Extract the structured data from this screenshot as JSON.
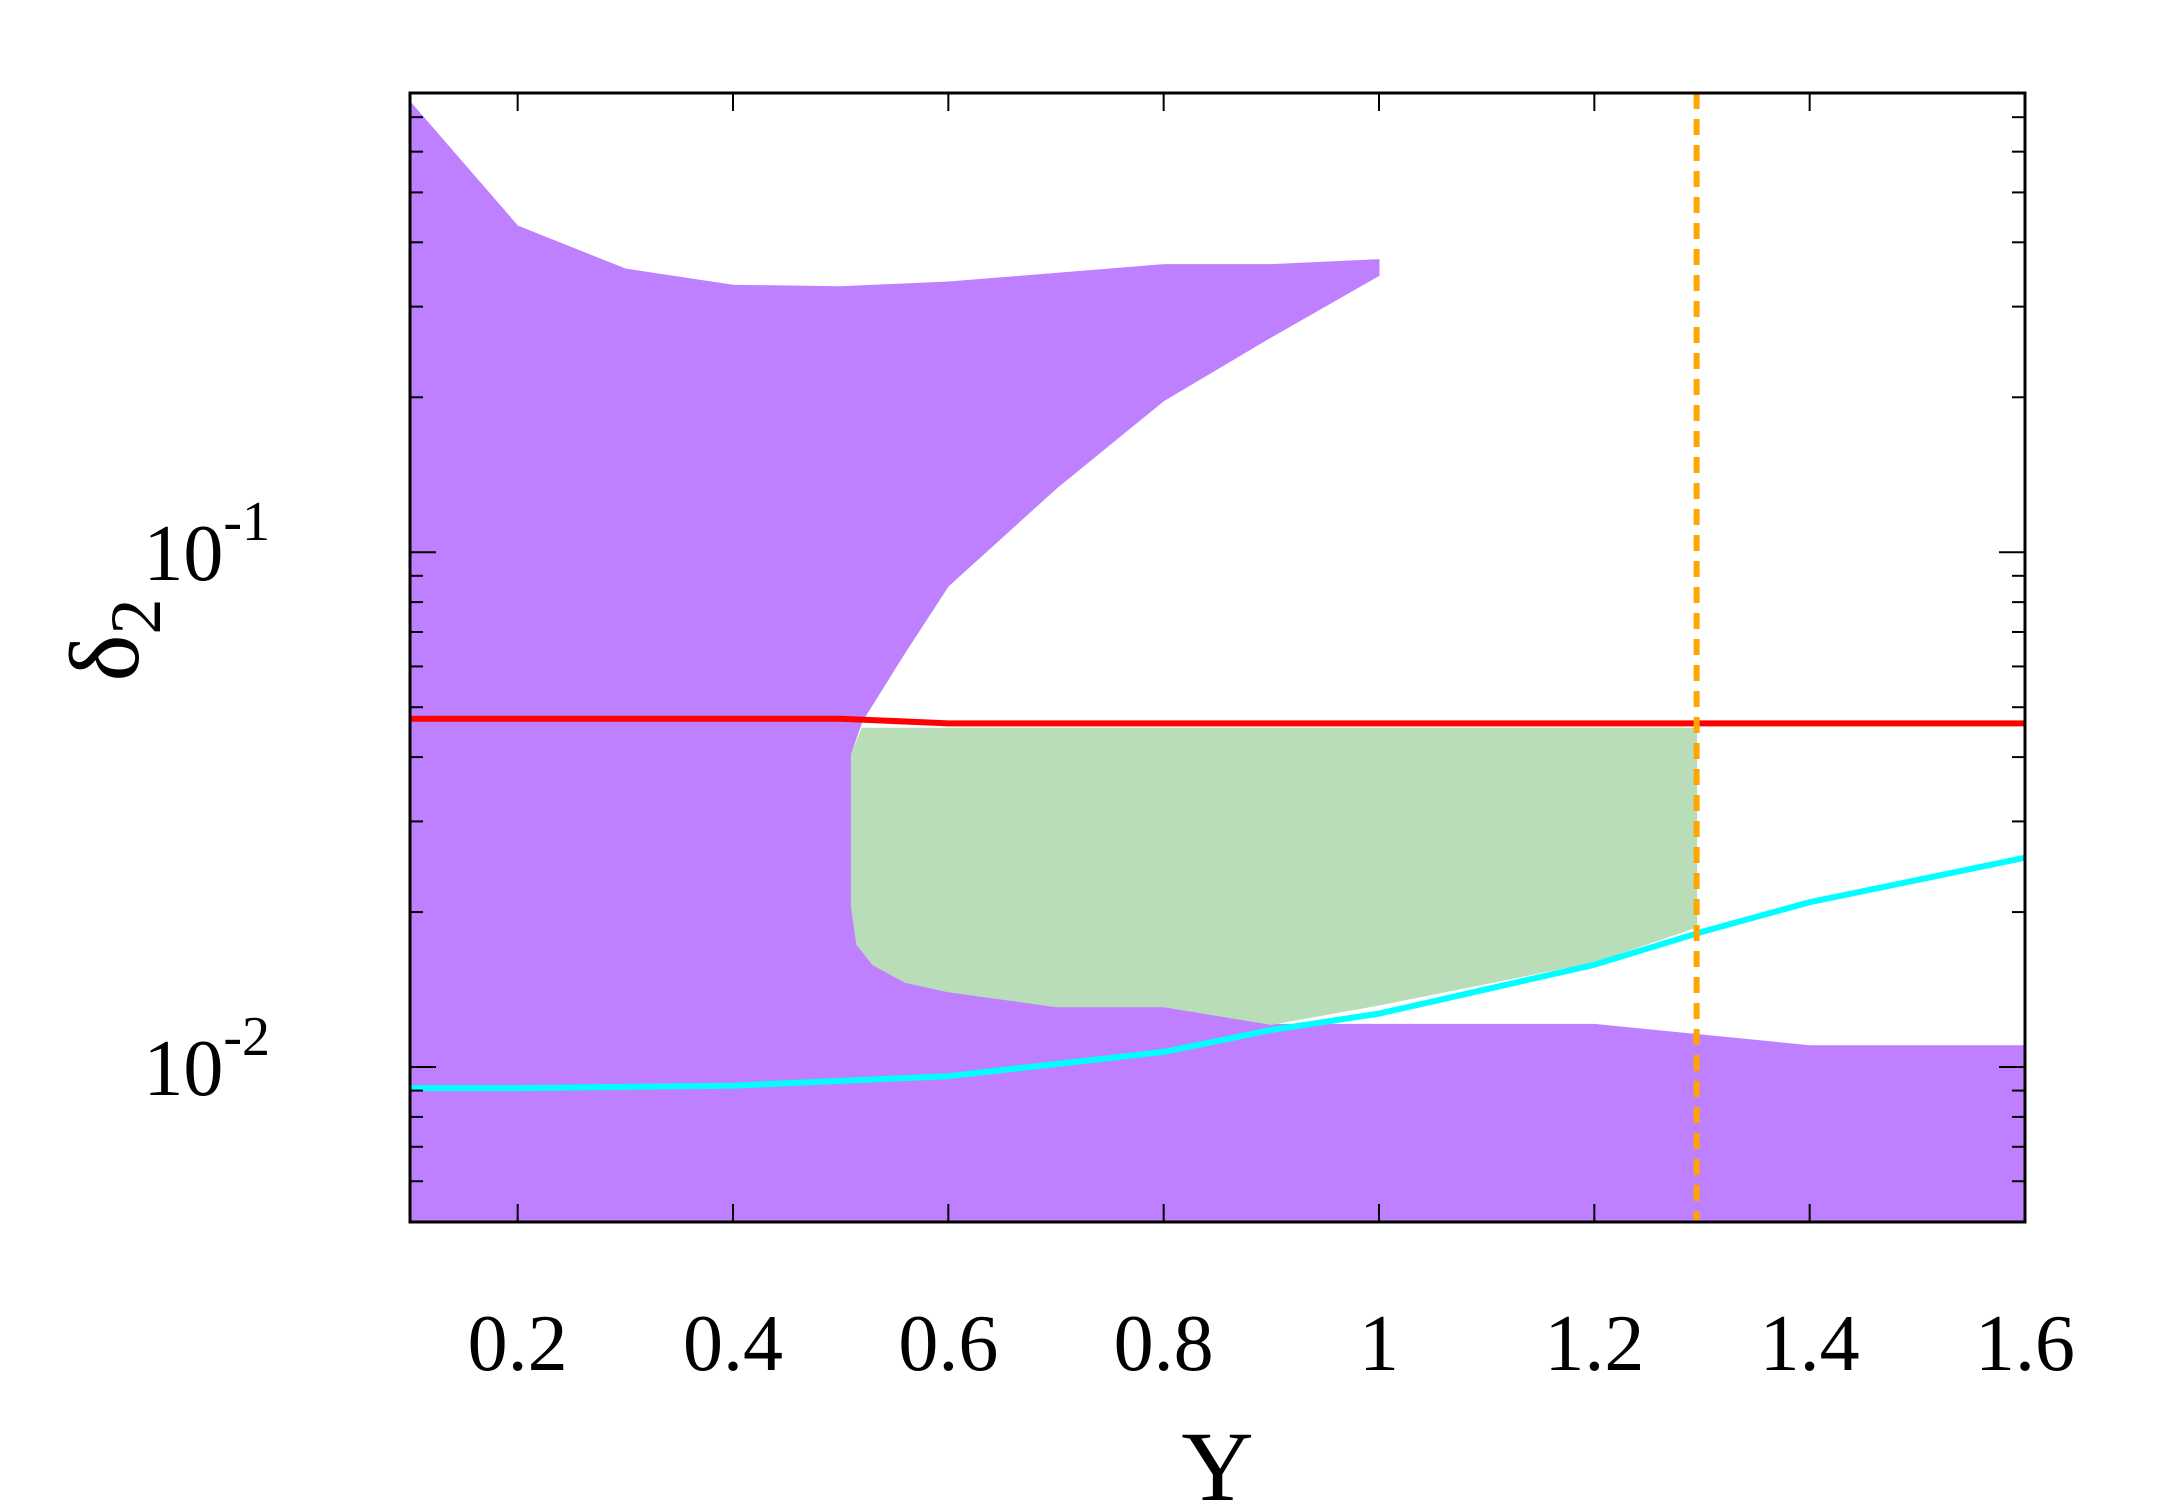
{
  "chart_data": {
    "type": "area",
    "xlabel": "Y",
    "ylabel": "δ",
    "ylabel_subscript": "2",
    "xscale": "linear",
    "yscale": "log",
    "xlim": [
      0.1,
      1.6
    ],
    "ylim": [
      0.005,
      0.78
    ],
    "grid": false,
    "legend": "none",
    "x_ticks": [
      {
        "value": 0.2,
        "label": "0.2"
      },
      {
        "value": 0.4,
        "label": "0.4"
      },
      {
        "value": 0.6,
        "label": "0.6"
      },
      {
        "value": 0.8,
        "label": "0.8"
      },
      {
        "value": 1.0,
        "label": "1"
      },
      {
        "value": 1.2,
        "label": "1.2"
      },
      {
        "value": 1.4,
        "label": "1.4"
      },
      {
        "value": 1.6,
        "label": "1.6"
      }
    ],
    "y_ticks": [
      {
        "value": 0.1,
        "base": "10",
        "exp": "-1"
      },
      {
        "value": 0.01,
        "base": "10",
        "exp": "-2"
      }
    ],
    "regions": [
      {
        "color": "#bf80ff",
        "points": [
          [
            0.1,
            0.75
          ],
          [
            0.2,
            0.43
          ],
          [
            0.3,
            0.355
          ],
          [
            0.4,
            0.33
          ],
          [
            0.5,
            0.328
          ],
          [
            0.6,
            0.335
          ],
          [
            0.7,
            0.348
          ],
          [
            0.8,
            0.362
          ],
          [
            0.9,
            0.362
          ],
          [
            1.0,
            0.37
          ],
          [
            1.0,
            0.345
          ],
          [
            0.9,
            0.262
          ],
          [
            0.8,
            0.197
          ],
          [
            0.7,
            0.133
          ],
          [
            0.6,
            0.086
          ],
          [
            0.56,
            0.064
          ],
          [
            0.52,
            0.047
          ],
          [
            0.51,
            0.041
          ],
          [
            0.51,
            0.0205
          ],
          [
            0.515,
            0.0173
          ],
          [
            0.53,
            0.0158
          ],
          [
            0.56,
            0.0146
          ],
          [
            0.6,
            0.014
          ],
          [
            0.7,
            0.0131
          ],
          [
            0.8,
            0.0131
          ],
          [
            0.9,
            0.0121
          ],
          [
            1.0,
            0.0121
          ],
          [
            1.2,
            0.0121
          ],
          [
            1.4,
            0.011
          ],
          [
            1.6,
            0.011
          ],
          [
            1.6,
            0.005
          ],
          [
            0.1,
            0.005
          ]
        ]
      },
      {
        "color": "#b9dcb9",
        "points": [
          [
            0.51,
            0.0405
          ],
          [
            0.52,
            0.0455
          ],
          [
            0.6,
            0.0455
          ],
          [
            1.0,
            0.0455
          ],
          [
            1.295,
            0.0455
          ],
          [
            1.295,
            0.0187
          ],
          [
            1.2,
            0.016
          ],
          [
            1.0,
            0.0132
          ],
          [
            0.9,
            0.0121
          ],
          [
            0.8,
            0.0131
          ],
          [
            0.7,
            0.0131
          ],
          [
            0.6,
            0.014
          ],
          [
            0.56,
            0.0146
          ],
          [
            0.53,
            0.0158
          ],
          [
            0.515,
            0.0173
          ],
          [
            0.51,
            0.0205
          ]
        ]
      }
    ],
    "lines": [
      {
        "color": "#ff0000",
        "style": "solid",
        "x": [
          0.1,
          0.5,
          0.6,
          0.8,
          1.0,
          1.2,
          1.4,
          1.6
        ],
        "y": [
          0.0475,
          0.0475,
          0.0465,
          0.0465,
          0.0465,
          0.0465,
          0.0465,
          0.0465
        ]
      },
      {
        "color": "#00ffff",
        "style": "solid",
        "x": [
          0.1,
          0.2,
          0.4,
          0.5,
          0.6,
          0.8,
          0.9,
          1.0,
          1.2,
          1.3,
          1.4,
          1.6
        ],
        "y": [
          0.0091,
          0.0091,
          0.0092,
          0.0094,
          0.0096,
          0.0107,
          0.0118,
          0.0127,
          0.0158,
          0.0183,
          0.0209,
          0.0255
        ]
      }
    ],
    "vlines": [
      {
        "x": 1.295,
        "color": "#ffa500",
        "style": "dashed"
      }
    ]
  }
}
